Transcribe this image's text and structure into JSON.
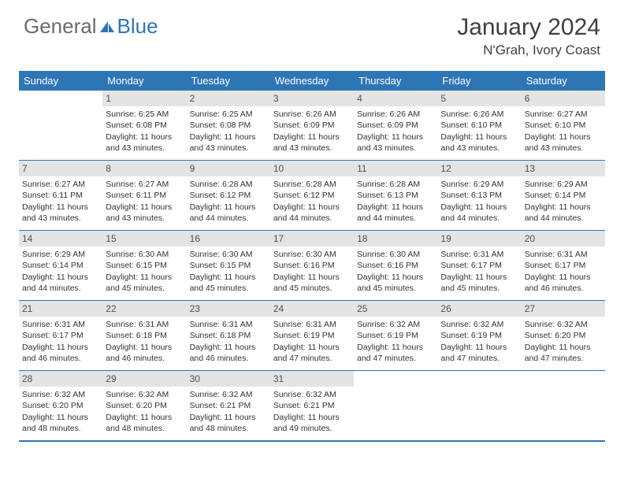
{
  "brand": {
    "general": "General",
    "blue": "Blue"
  },
  "title": "January 2024",
  "location": "N'Grah, Ivory Coast",
  "colors": {
    "header_bg": "#2e75b6",
    "header_text": "#ffffff",
    "daynum_bg": "#e4e4e4",
    "daynum_text": "#505050",
    "text": "#333333",
    "logo_gray": "#6a6a6a",
    "logo_blue": "#2e75b6"
  },
  "day_names": [
    "Sunday",
    "Monday",
    "Tuesday",
    "Wednesday",
    "Thursday",
    "Friday",
    "Saturday"
  ],
  "weeks": [
    [
      {
        "n": ""
      },
      {
        "n": "1",
        "sr": "Sunrise: 6:25 AM",
        "ss": "Sunset: 6:08 PM",
        "dl": "Daylight: 11 hours and 43 minutes."
      },
      {
        "n": "2",
        "sr": "Sunrise: 6:25 AM",
        "ss": "Sunset: 6:08 PM",
        "dl": "Daylight: 11 hours and 43 minutes."
      },
      {
        "n": "3",
        "sr": "Sunrise: 6:26 AM",
        "ss": "Sunset: 6:09 PM",
        "dl": "Daylight: 11 hours and 43 minutes."
      },
      {
        "n": "4",
        "sr": "Sunrise: 6:26 AM",
        "ss": "Sunset: 6:09 PM",
        "dl": "Daylight: 11 hours and 43 minutes."
      },
      {
        "n": "5",
        "sr": "Sunrise: 6:26 AM",
        "ss": "Sunset: 6:10 PM",
        "dl": "Daylight: 11 hours and 43 minutes."
      },
      {
        "n": "6",
        "sr": "Sunrise: 6:27 AM",
        "ss": "Sunset: 6:10 PM",
        "dl": "Daylight: 11 hours and 43 minutes."
      }
    ],
    [
      {
        "n": "7",
        "sr": "Sunrise: 6:27 AM",
        "ss": "Sunset: 6:11 PM",
        "dl": "Daylight: 11 hours and 43 minutes."
      },
      {
        "n": "8",
        "sr": "Sunrise: 6:27 AM",
        "ss": "Sunset: 6:11 PM",
        "dl": "Daylight: 11 hours and 43 minutes."
      },
      {
        "n": "9",
        "sr": "Sunrise: 6:28 AM",
        "ss": "Sunset: 6:12 PM",
        "dl": "Daylight: 11 hours and 44 minutes."
      },
      {
        "n": "10",
        "sr": "Sunrise: 6:28 AM",
        "ss": "Sunset: 6:12 PM",
        "dl": "Daylight: 11 hours and 44 minutes."
      },
      {
        "n": "11",
        "sr": "Sunrise: 6:28 AM",
        "ss": "Sunset: 6:13 PM",
        "dl": "Daylight: 11 hours and 44 minutes."
      },
      {
        "n": "12",
        "sr": "Sunrise: 6:29 AM",
        "ss": "Sunset: 6:13 PM",
        "dl": "Daylight: 11 hours and 44 minutes."
      },
      {
        "n": "13",
        "sr": "Sunrise: 6:29 AM",
        "ss": "Sunset: 6:14 PM",
        "dl": "Daylight: 11 hours and 44 minutes."
      }
    ],
    [
      {
        "n": "14",
        "sr": "Sunrise: 6:29 AM",
        "ss": "Sunset: 6:14 PM",
        "dl": "Daylight: 11 hours and 44 minutes."
      },
      {
        "n": "15",
        "sr": "Sunrise: 6:30 AM",
        "ss": "Sunset: 6:15 PM",
        "dl": "Daylight: 11 hours and 45 minutes."
      },
      {
        "n": "16",
        "sr": "Sunrise: 6:30 AM",
        "ss": "Sunset: 6:15 PM",
        "dl": "Daylight: 11 hours and 45 minutes."
      },
      {
        "n": "17",
        "sr": "Sunrise: 6:30 AM",
        "ss": "Sunset: 6:16 PM",
        "dl": "Daylight: 11 hours and 45 minutes."
      },
      {
        "n": "18",
        "sr": "Sunrise: 6:30 AM",
        "ss": "Sunset: 6:16 PM",
        "dl": "Daylight: 11 hours and 45 minutes."
      },
      {
        "n": "19",
        "sr": "Sunrise: 6:31 AM",
        "ss": "Sunset: 6:17 PM",
        "dl": "Daylight: 11 hours and 45 minutes."
      },
      {
        "n": "20",
        "sr": "Sunrise: 6:31 AM",
        "ss": "Sunset: 6:17 PM",
        "dl": "Daylight: 11 hours and 46 minutes."
      }
    ],
    [
      {
        "n": "21",
        "sr": "Sunrise: 6:31 AM",
        "ss": "Sunset: 6:17 PM",
        "dl": "Daylight: 11 hours and 46 minutes."
      },
      {
        "n": "22",
        "sr": "Sunrise: 6:31 AM",
        "ss": "Sunset: 6:18 PM",
        "dl": "Daylight: 11 hours and 46 minutes."
      },
      {
        "n": "23",
        "sr": "Sunrise: 6:31 AM",
        "ss": "Sunset: 6:18 PM",
        "dl": "Daylight: 11 hours and 46 minutes."
      },
      {
        "n": "24",
        "sr": "Sunrise: 6:31 AM",
        "ss": "Sunset: 6:19 PM",
        "dl": "Daylight: 11 hours and 47 minutes."
      },
      {
        "n": "25",
        "sr": "Sunrise: 6:32 AM",
        "ss": "Sunset: 6:19 PM",
        "dl": "Daylight: 11 hours and 47 minutes."
      },
      {
        "n": "26",
        "sr": "Sunrise: 6:32 AM",
        "ss": "Sunset: 6:19 PM",
        "dl": "Daylight: 11 hours and 47 minutes."
      },
      {
        "n": "27",
        "sr": "Sunrise: 6:32 AM",
        "ss": "Sunset: 6:20 PM",
        "dl": "Daylight: 11 hours and 47 minutes."
      }
    ],
    [
      {
        "n": "28",
        "sr": "Sunrise: 6:32 AM",
        "ss": "Sunset: 6:20 PM",
        "dl": "Daylight: 11 hours and 48 minutes."
      },
      {
        "n": "29",
        "sr": "Sunrise: 6:32 AM",
        "ss": "Sunset: 6:20 PM",
        "dl": "Daylight: 11 hours and 48 minutes."
      },
      {
        "n": "30",
        "sr": "Sunrise: 6:32 AM",
        "ss": "Sunset: 6:21 PM",
        "dl": "Daylight: 11 hours and 48 minutes."
      },
      {
        "n": "31",
        "sr": "Sunrise: 6:32 AM",
        "ss": "Sunset: 6:21 PM",
        "dl": "Daylight: 11 hours and 49 minutes."
      },
      {
        "n": ""
      },
      {
        "n": ""
      },
      {
        "n": ""
      }
    ]
  ]
}
